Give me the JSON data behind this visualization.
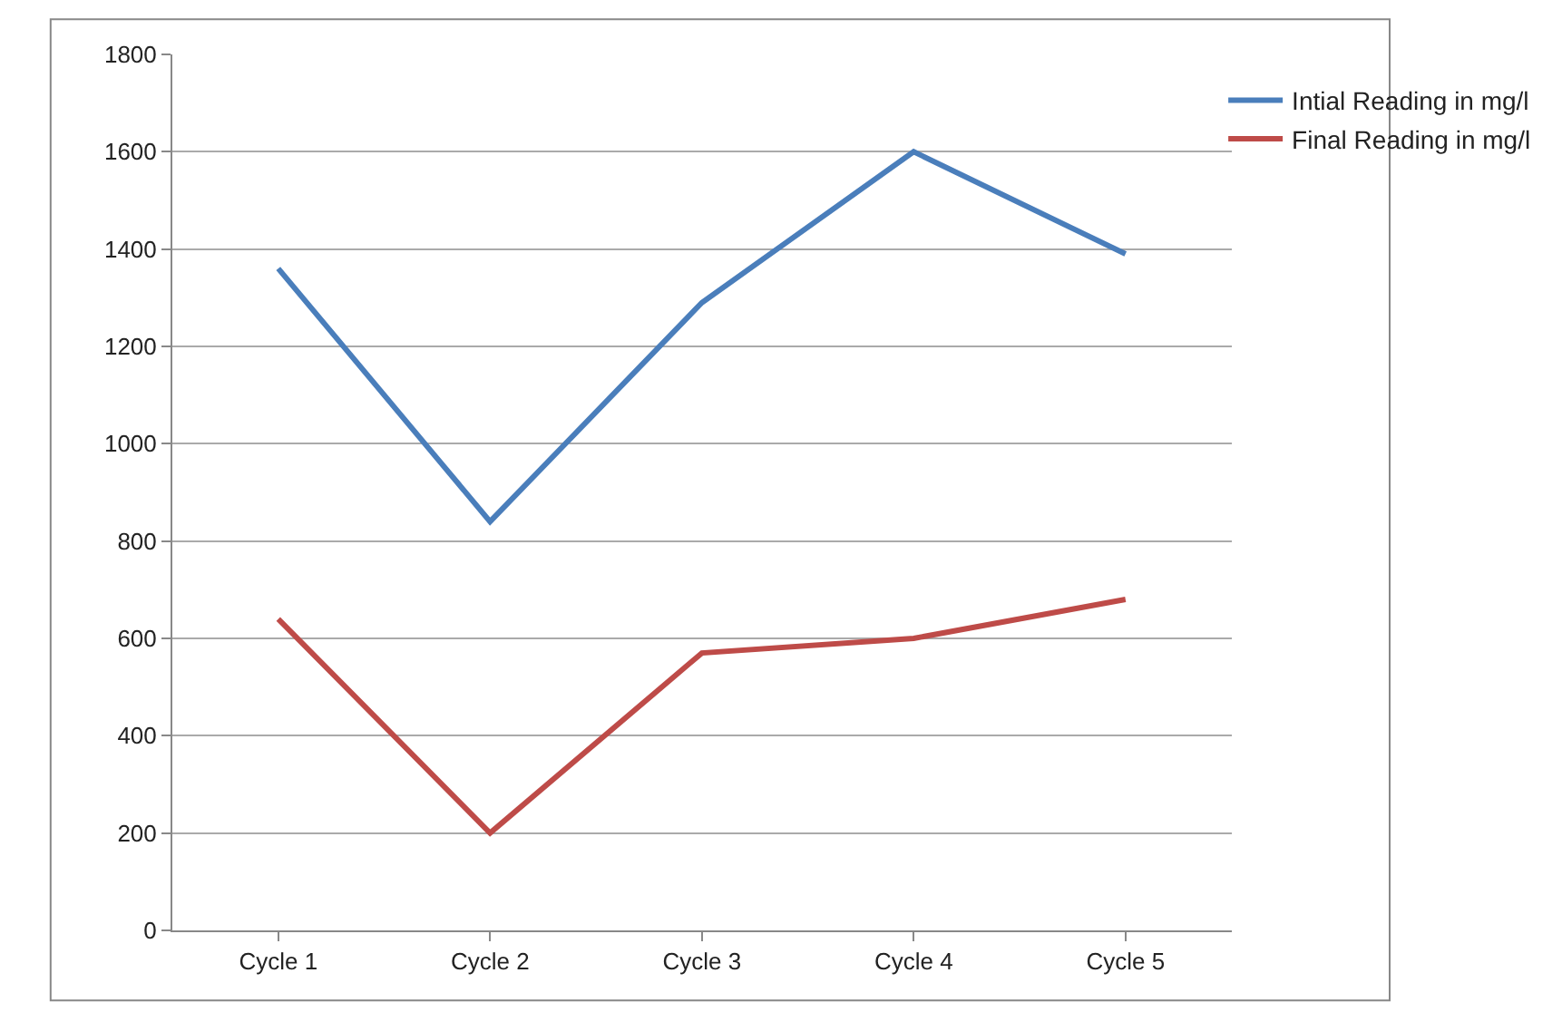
{
  "chart_data": {
    "type": "line",
    "categories": [
      "Cycle 1",
      "Cycle 2",
      "Cycle 3",
      "Cycle 4",
      "Cycle 5"
    ],
    "series": [
      {
        "name": "Intial Reading in mg/l",
        "color": "#4a7ebb",
        "values": [
          1360,
          840,
          1290,
          1600,
          1390
        ]
      },
      {
        "name": "Final Reading in mg/l",
        "color": "#be4b48",
        "values": [
          640,
          200,
          570,
          600,
          680
        ]
      }
    ],
    "ylim": [
      0,
      1800
    ],
    "yticks": [
      0,
      200,
      400,
      600,
      800,
      1000,
      1200,
      1400,
      1600,
      1800
    ],
    "grid": "y",
    "legend": "right",
    "marker": "none",
    "line_style": "solid"
  }
}
